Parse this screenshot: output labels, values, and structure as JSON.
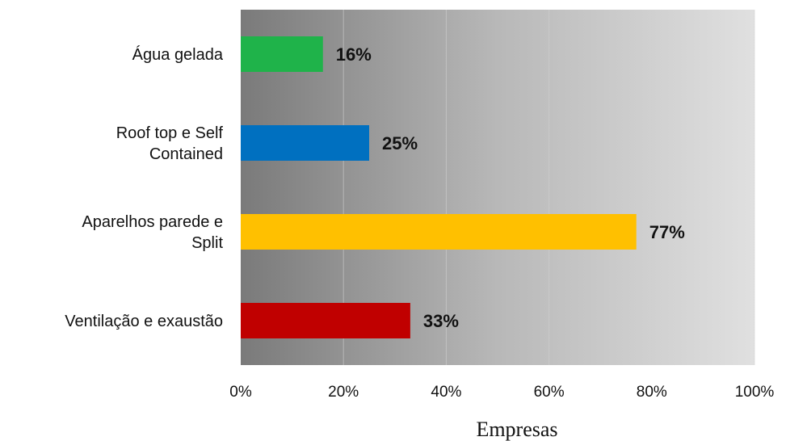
{
  "chart_data": {
    "type": "bar",
    "orientation": "horizontal",
    "categories": [
      "Água gelada",
      "Roof top e Self Contained",
      "Aparelhos parede e Split",
      "Ventilação e exaustão"
    ],
    "category_label_lines": [
      [
        "Água gelada"
      ],
      [
        "Roof top e Self",
        "Contained"
      ],
      [
        "Aparelhos parede e",
        "Split"
      ],
      [
        "Ventilação e exaustão"
      ]
    ],
    "values": [
      16,
      25,
      77,
      33
    ],
    "data_labels": [
      "16%",
      "25%",
      "77%",
      "33%"
    ],
    "colors": [
      "#1fb34a",
      "#0070c0",
      "#ffc000",
      "#c00000"
    ],
    "xlim": [
      0,
      100
    ],
    "xticks": [
      0,
      20,
      40,
      60,
      80,
      100
    ],
    "xtick_labels": [
      "0%",
      "20%",
      "40%",
      "60%",
      "80%",
      "100%"
    ],
    "xlabel": "Empresas",
    "background": "gradient dark gray to light gray",
    "grid": true
  }
}
